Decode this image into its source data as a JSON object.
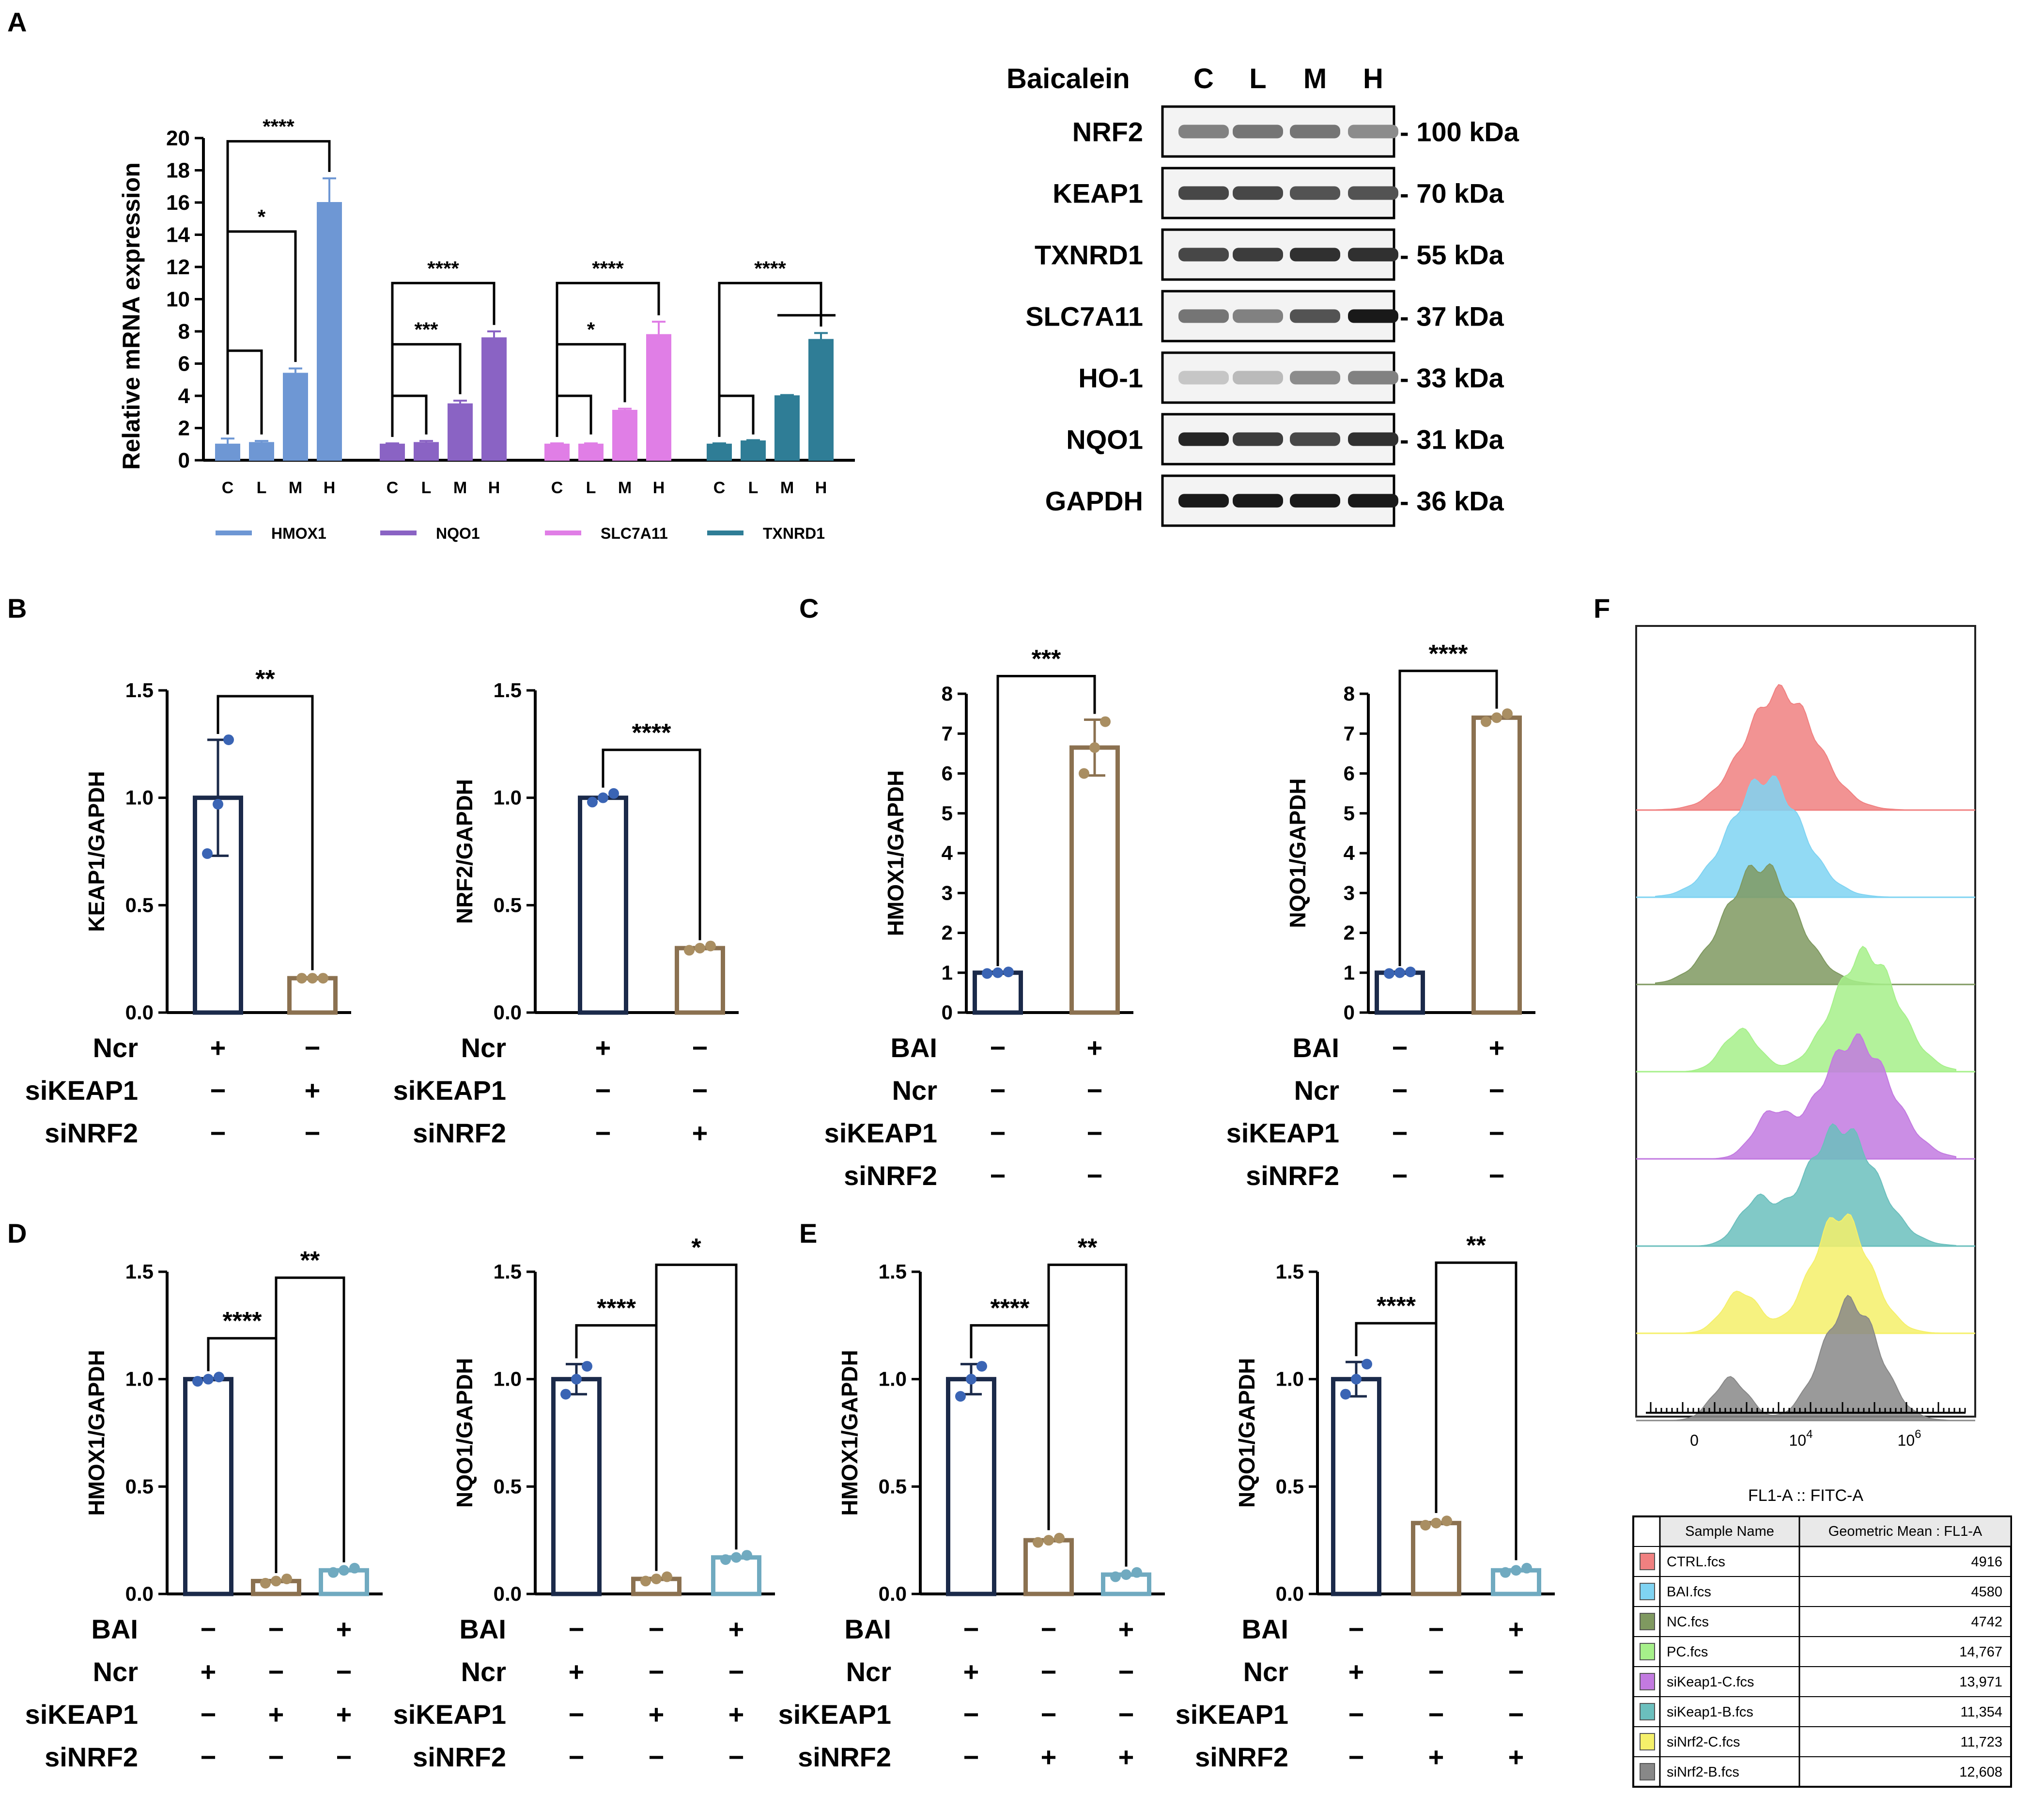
{
  "panels": [
    {
      "id": "A",
      "label": "A"
    },
    {
      "id": "B",
      "label": "B"
    },
    {
      "id": "C",
      "label": "C"
    },
    {
      "id": "D",
      "label": "D"
    },
    {
      "id": "E",
      "label": "E"
    },
    {
      "id": "F",
      "label": "F"
    }
  ],
  "colors": {
    "hmox1": "#6e97d4",
    "nqo1": "#8a63c4",
    "slc7a11": "#e07ee6",
    "txnrd1": "#2f7d96",
    "navy": "#1b2a4a",
    "dot_blue": "#3a64b4",
    "tan": "#8b7150",
    "tan_fill": "#a98e62",
    "teal": "#70aac0"
  },
  "chart_data": [
    {
      "id": "A-bar",
      "type": "bar",
      "title": "",
      "xlabel": "",
      "ylabel": "Relative mRNA expression",
      "ylim": [
        0,
        20
      ],
      "yticks": [
        "0",
        "2",
        "4",
        "6",
        "8",
        "10",
        "12",
        "14",
        "16",
        "18",
        "20"
      ],
      "categories": [
        "C",
        "L",
        "M",
        "H"
      ],
      "series": [
        {
          "name": "HMOX1",
          "color": "#6e97d4",
          "values": [
            1.0,
            1.1,
            5.4,
            16.0
          ],
          "err": [
            0.35,
            0.1,
            0.3,
            1.5
          ]
        },
        {
          "name": "NQO1",
          "color": "#8a63c4",
          "values": [
            1.0,
            1.1,
            3.5,
            7.6
          ],
          "err": [
            0.05,
            0.1,
            0.2,
            0.4
          ]
        },
        {
          "name": "SLC7A11",
          "color": "#e07ee6",
          "values": [
            1.0,
            1.0,
            3.1,
            7.8
          ],
          "err": [
            0.05,
            0.05,
            0.1,
            0.8
          ]
        },
        {
          "name": "TXNRD1",
          "color": "#2f7d96",
          "values": [
            1.0,
            1.2,
            4.0,
            7.5
          ],
          "err": [
            0.05,
            0.05,
            0.05,
            0.4
          ]
        }
      ],
      "significance": [
        {
          "series": 0,
          "from": 0,
          "to": 3,
          "label": "****"
        },
        {
          "series": 0,
          "from": 0,
          "to": 2,
          "label": "*"
        },
        {
          "series": 1,
          "from": 0,
          "to": 3,
          "label": "****"
        },
        {
          "series": 1,
          "from": 0,
          "to": 2,
          "label": "***"
        },
        {
          "series": 2,
          "from": 0,
          "to": 3,
          "label": "****"
        },
        {
          "series": 2,
          "from": 0,
          "to": 2,
          "label": "*"
        },
        {
          "series": 3,
          "from": 0,
          "to": 3,
          "label": "****"
        }
      ]
    },
    {
      "id": "A-blot",
      "type": "table",
      "header_label": "Baicalein",
      "lanes": [
        "C",
        "L",
        "M",
        "H"
      ],
      "bands": [
        {
          "protein": "NRF2",
          "size": "- 100 kDa",
          "intensity": [
            0.55,
            0.6,
            0.6,
            0.5
          ]
        },
        {
          "protein": "KEAP1",
          "size": "- 70 kDa",
          "intensity": [
            0.8,
            0.8,
            0.75,
            0.75
          ]
        },
        {
          "protein": "TXNRD1",
          "size": "- 55 kDa",
          "intensity": [
            0.8,
            0.85,
            0.9,
            0.9
          ]
        },
        {
          "protein": "SLC7A11",
          "size": "- 37 kDa",
          "intensity": [
            0.6,
            0.55,
            0.75,
            1.0
          ]
        },
        {
          "protein": "HO-1",
          "size": "- 33 kDa",
          "intensity": [
            0.25,
            0.3,
            0.5,
            0.55
          ]
        },
        {
          "protein": "NQO1",
          "size": "- 31 kDa",
          "intensity": [
            0.95,
            0.85,
            0.8,
            0.9
          ]
        },
        {
          "protein": "GAPDH",
          "size": "- 36 kDa",
          "intensity": [
            1.0,
            1.0,
            1.0,
            1.0
          ]
        }
      ]
    },
    {
      "id": "B1",
      "type": "bar",
      "ylabel": "KEAP1/GAPDH",
      "ylim": [
        0,
        1.5
      ],
      "yticks": [
        "0.0",
        "0.5",
        "1.0",
        "1.5"
      ],
      "values": [
        1.0,
        0.16
      ],
      "points": [
        [
          0.74,
          0.97,
          1.27
        ],
        [
          0.16,
          0.16,
          0.16
        ]
      ],
      "sd": [
        0.27,
        0.01
      ],
      "bar_colors": [
        "#1b2a4a",
        "#8b7150"
      ],
      "dot_colors": [
        "#3a64b4",
        "#a98e62"
      ],
      "brackets": [
        {
          "from": 0,
          "to": 1,
          "label": "**"
        }
      ],
      "conditions": [
        {
          "name": "Ncr",
          "signs": [
            "+",
            "−"
          ]
        },
        {
          "name": "siKEAP1",
          "signs": [
            "−",
            "+"
          ]
        },
        {
          "name": "siNRF2",
          "signs": [
            "−",
            "−"
          ]
        }
      ]
    },
    {
      "id": "B2",
      "type": "bar",
      "ylabel": "NRF2/GAPDH",
      "ylim": [
        0,
        1.5
      ],
      "yticks": [
        "0.0",
        "0.5",
        "1.0",
        "1.5"
      ],
      "values": [
        1.0,
        0.3
      ],
      "points": [
        [
          0.98,
          1.0,
          1.02
        ],
        [
          0.29,
          0.3,
          0.31
        ]
      ],
      "sd": [
        0.02,
        0.01
      ],
      "bar_colors": [
        "#1b2a4a",
        "#8b7150"
      ],
      "dot_colors": [
        "#3a64b4",
        "#a98e62"
      ],
      "brackets": [
        {
          "from": 0,
          "to": 1,
          "label": "****"
        }
      ],
      "conditions": [
        {
          "name": "Ncr",
          "signs": [
            "+",
            "−"
          ]
        },
        {
          "name": "siKEAP1",
          "signs": [
            "−",
            "−"
          ]
        },
        {
          "name": "siNRF2",
          "signs": [
            "−",
            "+"
          ]
        }
      ]
    },
    {
      "id": "C1",
      "type": "bar",
      "ylabel": "HMOX1/GAPDH",
      "ylim": [
        0,
        8
      ],
      "yticks": [
        "0",
        "1",
        "2",
        "3",
        "4",
        "5",
        "6",
        "7",
        "8"
      ],
      "values": [
        1.0,
        6.65
      ],
      "points": [
        [
          0.98,
          1.0,
          1.02
        ],
        [
          6.0,
          6.65,
          7.3
        ]
      ],
      "sd": [
        0.02,
        0.7
      ],
      "bar_colors": [
        "#1b2a4a",
        "#8b7150"
      ],
      "dot_colors": [
        "#3a64b4",
        "#a98e62"
      ],
      "brackets": [
        {
          "from": 0,
          "to": 1,
          "label": "***"
        }
      ],
      "conditions": [
        {
          "name": "BAI",
          "signs": [
            "−",
            "+"
          ]
        },
        {
          "name": "Ncr",
          "signs": [
            "−",
            "−"
          ]
        },
        {
          "name": "siKEAP1",
          "signs": [
            "−",
            "−"
          ]
        },
        {
          "name": "siNRF2",
          "signs": [
            "−",
            "−"
          ]
        }
      ]
    },
    {
      "id": "C2",
      "type": "bar",
      "ylabel": "NQO1/GAPDH",
      "ylim": [
        0,
        8
      ],
      "yticks": [
        "0",
        "1",
        "2",
        "3",
        "4",
        "5",
        "6",
        "7",
        "8"
      ],
      "values": [
        1.0,
        7.4
      ],
      "points": [
        [
          0.98,
          1.0,
          1.02
        ],
        [
          7.3,
          7.4,
          7.5
        ]
      ],
      "sd": [
        0.02,
        0.08
      ],
      "bar_colors": [
        "#1b2a4a",
        "#8b7150"
      ],
      "dot_colors": [
        "#3a64b4",
        "#a98e62"
      ],
      "brackets": [
        {
          "from": 0,
          "to": 1,
          "label": "****"
        }
      ],
      "conditions": [
        {
          "name": "BAI",
          "signs": [
            "−",
            "+"
          ]
        },
        {
          "name": "Ncr",
          "signs": [
            "−",
            "−"
          ]
        },
        {
          "name": "siKEAP1",
          "signs": [
            "−",
            "−"
          ]
        },
        {
          "name": "siNRF2",
          "signs": [
            "−",
            "−"
          ]
        }
      ]
    },
    {
      "id": "D1",
      "type": "bar",
      "ylabel": "HMOX1/GAPDH",
      "ylim": [
        0,
        1.5
      ],
      "yticks": [
        "0.0",
        "0.5",
        "1.0",
        "1.5"
      ],
      "values": [
        1.0,
        0.06,
        0.11
      ],
      "points": [
        [
          0.99,
          1.0,
          1.01
        ],
        [
          0.05,
          0.06,
          0.07
        ],
        [
          0.1,
          0.11,
          0.12
        ]
      ],
      "sd": [
        0.01,
        0.01,
        0.01
      ],
      "bar_colors": [
        "#1b2a4a",
        "#8b7150",
        "#70aac0"
      ],
      "dot_colors": [
        "#3a64b4",
        "#a98e62",
        "#70aac0"
      ],
      "brackets": [
        {
          "from": 0,
          "to": 1,
          "label": "****"
        },
        {
          "from": 1,
          "to": 2,
          "label": "**"
        }
      ],
      "conditions": [
        {
          "name": "BAI",
          "signs": [
            "−",
            "−",
            "+"
          ]
        },
        {
          "name": "Ncr",
          "signs": [
            "+",
            "−",
            "−"
          ]
        },
        {
          "name": "siKEAP1",
          "signs": [
            "−",
            "+",
            "+"
          ]
        },
        {
          "name": "siNRF2",
          "signs": [
            "−",
            "−",
            "−"
          ]
        }
      ]
    },
    {
      "id": "D2",
      "type": "bar",
      "ylabel": "NQO1/GAPDH",
      "ylim": [
        0,
        1.5
      ],
      "yticks": [
        "0.0",
        "0.5",
        "1.0",
        "1.5"
      ],
      "values": [
        1.0,
        0.07,
        0.17
      ],
      "points": [
        [
          0.93,
          1.0,
          1.06
        ],
        [
          0.06,
          0.07,
          0.08
        ],
        [
          0.16,
          0.17,
          0.18
        ]
      ],
      "sd": [
        0.07,
        0.01,
        0.01
      ],
      "bar_colors": [
        "#1b2a4a",
        "#8b7150",
        "#70aac0"
      ],
      "dot_colors": [
        "#3a64b4",
        "#a98e62",
        "#70aac0"
      ],
      "brackets": [
        {
          "from": 0,
          "to": 1,
          "label": "****"
        },
        {
          "from": 1,
          "to": 2,
          "label": "*"
        }
      ],
      "conditions": [
        {
          "name": "BAI",
          "signs": [
            "−",
            "−",
            "+"
          ]
        },
        {
          "name": "Ncr",
          "signs": [
            "+",
            "−",
            "−"
          ]
        },
        {
          "name": "siKEAP1",
          "signs": [
            "−",
            "+",
            "+"
          ]
        },
        {
          "name": "siNRF2",
          "signs": [
            "−",
            "−",
            "−"
          ]
        }
      ]
    },
    {
      "id": "E1",
      "type": "bar",
      "ylabel": "HMOX1/GAPDH",
      "ylim": [
        0,
        1.5
      ],
      "yticks": [
        "0.0",
        "0.5",
        "1.0",
        "1.5"
      ],
      "values": [
        1.0,
        0.25,
        0.09
      ],
      "points": [
        [
          0.92,
          1.0,
          1.06
        ],
        [
          0.24,
          0.25,
          0.26
        ],
        [
          0.08,
          0.09,
          0.1
        ]
      ],
      "sd": [
        0.07,
        0.02,
        0.01
      ],
      "bar_colors": [
        "#1b2a4a",
        "#8b7150",
        "#70aac0"
      ],
      "dot_colors": [
        "#3a64b4",
        "#a98e62",
        "#70aac0"
      ],
      "brackets": [
        {
          "from": 0,
          "to": 1,
          "label": "****"
        },
        {
          "from": 1,
          "to": 2,
          "label": "**"
        }
      ],
      "conditions": [
        {
          "name": "BAI",
          "signs": [
            "−",
            "−",
            "+"
          ]
        },
        {
          "name": "Ncr",
          "signs": [
            "+",
            "−",
            "−"
          ]
        },
        {
          "name": "siKEAP1",
          "signs": [
            "−",
            "−",
            "−"
          ]
        },
        {
          "name": "siNRF2",
          "signs": [
            "−",
            "+",
            "+"
          ]
        }
      ]
    },
    {
      "id": "E2",
      "type": "bar",
      "ylabel": "NQO1/GAPDH",
      "ylim": [
        0,
        1.5
      ],
      "yticks": [
        "0.0",
        "0.5",
        "1.0",
        "1.5"
      ],
      "values": [
        1.0,
        0.33,
        0.11
      ],
      "points": [
        [
          0.93,
          1.0,
          1.07
        ],
        [
          0.32,
          0.33,
          0.34
        ],
        [
          0.1,
          0.11,
          0.12
        ]
      ],
      "sd": [
        0.08,
        0.02,
        0.02
      ],
      "bar_colors": [
        "#1b2a4a",
        "#8b7150",
        "#70aac0"
      ],
      "dot_colors": [
        "#3a64b4",
        "#a98e62",
        "#70aac0"
      ],
      "brackets": [
        {
          "from": 0,
          "to": 1,
          "label": "****"
        },
        {
          "from": 1,
          "to": 2,
          "label": "**"
        }
      ],
      "conditions": [
        {
          "name": "BAI",
          "signs": [
            "−",
            "−",
            "+"
          ]
        },
        {
          "name": "Ncr",
          "signs": [
            "+",
            "−",
            "−"
          ]
        },
        {
          "name": "siKEAP1",
          "signs": [
            "−",
            "−",
            "−"
          ]
        },
        {
          "name": "siNRF2",
          "signs": [
            "−",
            "+",
            "+"
          ]
        }
      ]
    },
    {
      "id": "F",
      "type": "area",
      "xlabel": "FL1-A :: FITC-A",
      "xtick_labels": [
        {
          "base": "0",
          "exp": ""
        },
        {
          "base": "10",
          "exp": "4"
        },
        {
          "base": "10",
          "exp": "6"
        }
      ],
      "log_scale": true,
      "histograms": [
        {
          "sample": "CTRL.fcs",
          "color": "#f08080",
          "peak": 0.4,
          "shoulder": 0,
          "width": 0.1
        },
        {
          "sample": "BAI.fcs",
          "color": "#7fd3f2",
          "peak": 0.37,
          "shoulder": 0,
          "width": 0.1
        },
        {
          "sample": "NC.fcs",
          "color": "#7f9960",
          "peak": 0.36,
          "shoulder": 0,
          "width": 0.1
        },
        {
          "sample": "PC.fcs",
          "color": "#a6f08a",
          "peak": 0.57,
          "shoulder": 0.32,
          "width": 0.09
        },
        {
          "sample": "siKeap1-C.fcs",
          "color": "#c27ae0",
          "peak": 0.55,
          "shoulder": 0.38,
          "width": 0.1
        },
        {
          "sample": "siKeap1-B.fcs",
          "color": "#6bbfbd",
          "peak": 0.52,
          "shoulder": 0.35,
          "width": 0.1
        },
        {
          "sample": "siNrf2-C.fcs",
          "color": "#f5f06a",
          "peak": 0.52,
          "shoulder": 0.32,
          "width": 0.08
        },
        {
          "sample": "siNrf2-B.fcs",
          "color": "#888888",
          "peak": 0.54,
          "shoulder": 0.3,
          "width": 0.08
        }
      ],
      "table": {
        "headers": [
          "Sample Name",
          "Geometric Mean : FL1-A"
        ],
        "rows": [
          {
            "swatch": "#f08080",
            "name": "CTRL.fcs",
            "value": "4916"
          },
          {
            "swatch": "#7fd3f2",
            "name": "BAI.fcs",
            "value": "4580"
          },
          {
            "swatch": "#7f9960",
            "name": "NC.fcs",
            "value": "4742"
          },
          {
            "swatch": "#a6f08a",
            "name": "PC.fcs",
            "value": "14,767"
          },
          {
            "swatch": "#c27ae0",
            "name": "siKeap1-C.fcs",
            "value": "13,971"
          },
          {
            "swatch": "#6bbfbd",
            "name": "siKeap1-B.fcs",
            "value": "11,354"
          },
          {
            "swatch": "#f5f06a",
            "name": "siNrf2-C.fcs",
            "value": "11,723"
          },
          {
            "swatch": "#888888",
            "name": "siNrf2-B.fcs",
            "value": "12,608"
          }
        ]
      }
    }
  ]
}
